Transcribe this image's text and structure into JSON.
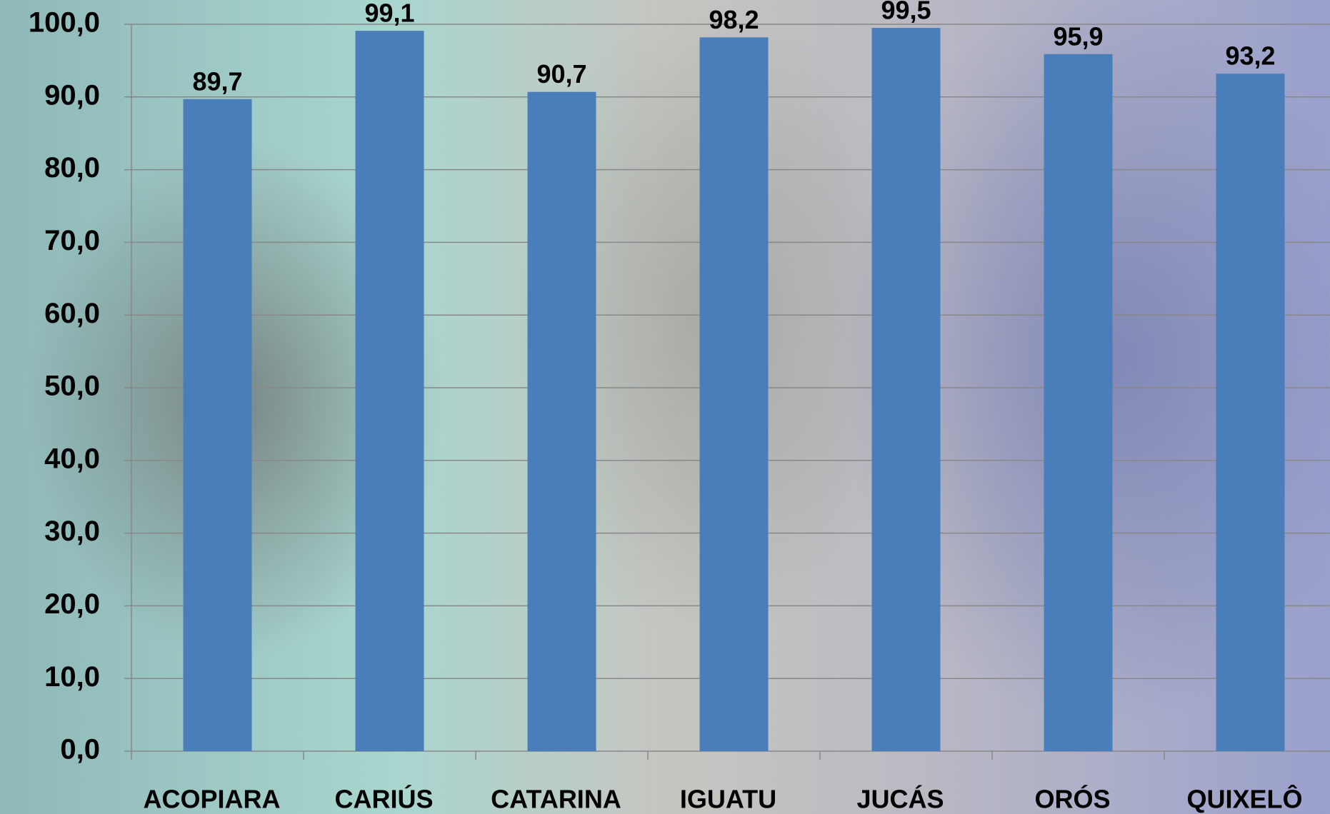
{
  "chart_data": {
    "type": "bar",
    "categories": [
      "ACOPIARA",
      "CARIÚS",
      "CATARINA",
      "IGUATU",
      "JUCÁS",
      "ORÓS",
      "QUIXELÔ"
    ],
    "values": [
      89.7,
      99.1,
      90.7,
      98.2,
      99.5,
      95.9,
      93.2
    ],
    "value_labels": [
      "89,7",
      "99,1",
      "90,7",
      "98,2",
      "99,5",
      "95,9",
      "93,2"
    ],
    "color": "#4a7ebb",
    "ylim": [
      0,
      100
    ],
    "yticks": [
      {
        "value": 0,
        "label": "0,0"
      },
      {
        "value": 10,
        "label": "10,0"
      },
      {
        "value": 20,
        "label": "20,0"
      },
      {
        "value": 30,
        "label": "30,0"
      },
      {
        "value": 40,
        "label": "40,0"
      },
      {
        "value": 50,
        "label": "50,0"
      },
      {
        "value": 60,
        "label": "60,0"
      },
      {
        "value": 70,
        "label": "70,0"
      },
      {
        "value": 80,
        "label": "80,0"
      },
      {
        "value": 90,
        "label": "90,0"
      },
      {
        "value": 100,
        "label": "100,0"
      }
    ],
    "grid": true
  }
}
